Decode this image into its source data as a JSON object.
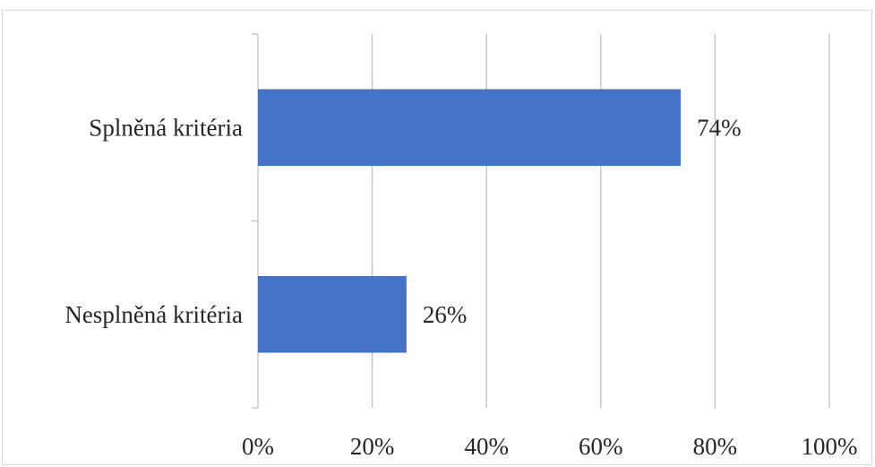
{
  "chart_data": {
    "type": "bar",
    "orientation": "horizontal",
    "categories": [
      "Splněná kritéria",
      "Nesplněná kritéria"
    ],
    "values": [
      74,
      26
    ],
    "data_labels": [
      "74%",
      "26%"
    ],
    "xlim": [
      0,
      100
    ],
    "x_ticks": [
      0,
      20,
      40,
      60,
      80,
      100
    ],
    "x_tick_labels": [
      "0%",
      "20%",
      "40%",
      "60%",
      "80%",
      "100%"
    ],
    "grid": true,
    "legend": "none",
    "bar_color": "#4472c4",
    "grid_color": "#bfbfbf"
  }
}
